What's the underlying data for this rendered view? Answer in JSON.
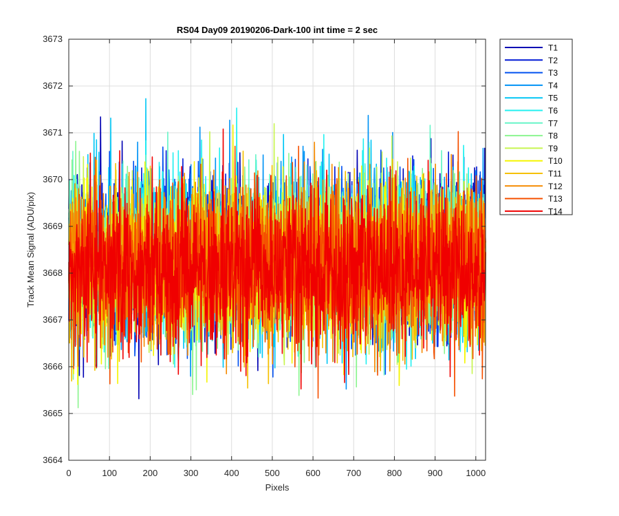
{
  "chart_data": {
    "type": "line",
    "title": "RS04 Day09 20190206-Dark-100 int time = 2 sec",
    "xlabel": "Pixels",
    "ylabel": "Track Mean Signal (ADU/pix)",
    "xlim": [
      0,
      1024
    ],
    "ylim": [
      3664,
      3673
    ],
    "xticks": [
      0,
      100,
      200,
      300,
      400,
      500,
      600,
      700,
      800,
      900,
      1000
    ],
    "yticks": [
      3664,
      3665,
      3666,
      3667,
      3668,
      3669,
      3670,
      3671,
      3672,
      3673
    ],
    "grid": true,
    "legend_position": "outside-top-right",
    "n_points": 1024,
    "series": [
      {
        "name": "T1",
        "color": "#0000B3",
        "mean": 3668.4,
        "noise_sd": 0.85
      },
      {
        "name": "T2",
        "color": "#0019D6",
        "mean": 3668.4,
        "noise_sd": 0.85
      },
      {
        "name": "T3",
        "color": "#0050F0",
        "mean": 3668.4,
        "noise_sd": 0.85
      },
      {
        "name": "T4",
        "color": "#0093F5",
        "mean": 3668.4,
        "noise_sd": 0.85
      },
      {
        "name": "T5",
        "color": "#00C6F5",
        "mean": 3668.3,
        "noise_sd": 0.85
      },
      {
        "name": "T6",
        "color": "#22F0F0",
        "mean": 3668.3,
        "noise_sd": 0.85
      },
      {
        "name": "T7",
        "color": "#66F5C8",
        "mean": 3668.3,
        "noise_sd": 0.85
      },
      {
        "name": "T8",
        "color": "#8CF590",
        "mean": 3668.3,
        "noise_sd": 0.85
      },
      {
        "name": "T9",
        "color": "#C8F550",
        "mean": 3668.2,
        "noise_sd": 0.85
      },
      {
        "name": "T10",
        "color": "#F5F500",
        "mean": 3668.2,
        "noise_sd": 0.85
      },
      {
        "name": "T11",
        "color": "#F5C000",
        "mean": 3668.2,
        "noise_sd": 0.85
      },
      {
        "name": "T12",
        "color": "#F58A00",
        "mean": 3668.2,
        "noise_sd": 0.85
      },
      {
        "name": "T13",
        "color": "#F55000",
        "mean": 3668.1,
        "noise_sd": 0.85
      },
      {
        "name": "T14",
        "color": "#F00000",
        "mean": 3668.1,
        "noise_sd": 0.85
      }
    ]
  }
}
